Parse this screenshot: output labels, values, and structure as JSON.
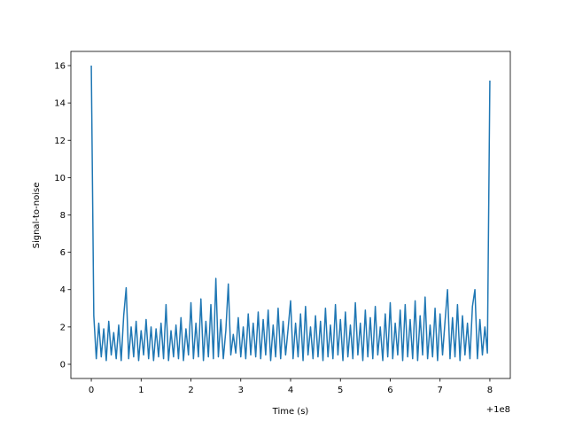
{
  "chart_data": {
    "type": "line",
    "xlabel": "Time (s)",
    "ylabel": "Signal-to-noise",
    "x_offset_label": "+1e8",
    "color": "#1f77b4",
    "xlim": [
      -0.41,
      8.41
    ],
    "xticks": [
      0,
      1,
      2,
      3,
      4,
      5,
      6,
      7,
      8
    ],
    "ylim": [
      -0.76,
      16.76
    ],
    "yticks": [
      0,
      2,
      4,
      6,
      8,
      10,
      12,
      14,
      16
    ],
    "x": [
      0,
      0.05,
      0.1,
      0.15,
      0.2,
      0.25,
      0.3,
      0.35,
      0.4,
      0.45,
      0.5,
      0.55,
      0.6,
      0.65,
      0.7,
      0.75,
      0.8,
      0.85,
      0.9,
      0.95,
      1,
      1.05,
      1.1,
      1.15,
      1.2,
      1.25,
      1.3,
      1.35,
      1.4,
      1.45,
      1.5,
      1.55,
      1.6,
      1.65,
      1.7,
      1.75,
      1.8,
      1.85,
      1.9,
      1.95,
      2,
      2.05,
      2.1,
      2.15,
      2.2,
      2.25,
      2.3,
      2.35,
      2.4,
      2.45,
      2.5,
      2.55,
      2.6,
      2.65,
      2.7,
      2.75,
      2.8,
      2.85,
      2.9,
      2.95,
      3,
      3.05,
      3.1,
      3.15,
      3.2,
      3.25,
      3.3,
      3.35,
      3.4,
      3.45,
      3.5,
      3.55,
      3.6,
      3.65,
      3.7,
      3.75,
      3.8,
      3.85,
      3.9,
      3.95,
      4,
      4.05,
      4.1,
      4.15,
      4.2,
      4.25,
      4.3,
      4.35,
      4.4,
      4.45,
      4.5,
      4.55,
      4.6,
      4.65,
      4.7,
      4.75,
      4.8,
      4.85,
      4.9,
      4.95,
      5,
      5.05,
      5.1,
      5.15,
      5.2,
      5.25,
      5.3,
      5.35,
      5.4,
      5.45,
      5.5,
      5.55,
      5.6,
      5.65,
      5.7,
      5.75,
      5.8,
      5.85,
      5.9,
      5.95,
      6,
      6.05,
      6.1,
      6.15,
      6.2,
      6.25,
      6.3,
      6.35,
      6.4,
      6.45,
      6.5,
      6.55,
      6.6,
      6.65,
      6.7,
      6.75,
      6.8,
      6.85,
      6.9,
      6.95,
      7,
      7.05,
      7.1,
      7.15,
      7.2,
      7.25,
      7.3,
      7.35,
      7.4,
      7.45,
      7.5,
      7.55,
      7.6,
      7.65,
      7.7,
      7.75,
      7.8,
      7.85,
      7.9,
      7.95,
      8
    ],
    "values": [
      16,
      2.6,
      0.3,
      2.2,
      0.4,
      1.9,
      0.2,
      2.3,
      0.5,
      1.7,
      0.3,
      2.1,
      0.2,
      2.6,
      4.1,
      0.3,
      2.0,
      0.4,
      2.3,
      0.2,
      1.8,
      0.5,
      2.4,
      0.3,
      2.0,
      0.2,
      1.9,
      0.4,
      2.2,
      0.3,
      3.2,
      0.2,
      1.8,
      0.4,
      2.1,
      0.3,
      2.5,
      0.2,
      1.9,
      0.5,
      3.3,
      0.3,
      2.2,
      0.4,
      3.5,
      0.2,
      2.3,
      0.4,
      3.2,
      0.3,
      4.6,
      0.4,
      2.4,
      0.3,
      1.8,
      4.3,
      0.5,
      1.6,
      0.6,
      2.5,
      0.4,
      2.0,
      0.3,
      2.7,
      0.5,
      2.2,
      0.4,
      2.8,
      0.3,
      2.4,
      0.5,
      2.9,
      0.2,
      2.1,
      0.4,
      3.0,
      0.3,
      2.3,
      0.5,
      1.9,
      3.4,
      0.3,
      2.2,
      0.4,
      2.7,
      0.2,
      3.1,
      0.5,
      2.0,
      0.3,
      2.6,
      0.4,
      2.3,
      0.2,
      3.0,
      0.4,
      2.1,
      0.3,
      3.2,
      0.5,
      2.4,
      0.2,
      2.8,
      0.4,
      2.1,
      0.3,
      3.3,
      0.5,
      2.2,
      0.2,
      2.9,
      0.4,
      2.5,
      0.3,
      3.1,
      0.5,
      2.0,
      0.2,
      2.7,
      0.4,
      3.3,
      0.3,
      2.2,
      0.5,
      2.9,
      0.2,
      3.2,
      0.4,
      2.4,
      0.3,
      3.4,
      0.2,
      2.6,
      0.5,
      3.6,
      0.3,
      2.1,
      0.4,
      3.0,
      0.2,
      2.7,
      0.5,
      2.3,
      4.0,
      0.3,
      2.5,
      0.4,
      3.2,
      0.2,
      2.6,
      0.5,
      2.2,
      0.3,
      3.1,
      4.0,
      0.3,
      2.4,
      0.5,
      2.0,
      0.6,
      15.2
    ]
  }
}
